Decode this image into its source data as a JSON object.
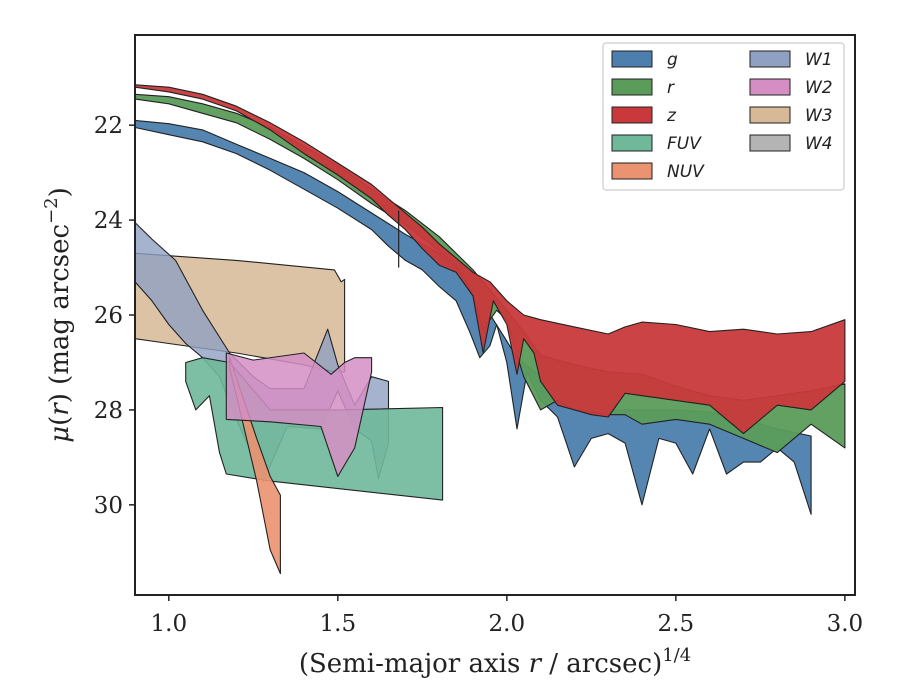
{
  "chart_data": {
    "type": "area",
    "xlabel": "(Semi-major axis r / arcsec)^1/4",
    "ylabel": "μ(r) (mag arcsec^-2)",
    "xlim": [
      0.9,
      3.03
    ],
    "ylim": [
      31.9,
      20.1
    ],
    "y_inverted": true,
    "xticks": [
      1.0,
      1.5,
      2.0,
      2.5,
      3.0
    ],
    "xtick_labels": [
      "1.0",
      "1.5",
      "2.0",
      "2.5",
      "3.0"
    ],
    "yticks": [
      22,
      24,
      26,
      28,
      30
    ],
    "ytick_labels": [
      "22",
      "24",
      "26",
      "28",
      "30"
    ],
    "legend": {
      "placement": "top-right",
      "columns": 2
    },
    "series": [
      {
        "name": "W3",
        "color": "#d7b997",
        "opacity": 0.85,
        "upper": [
          [
            0.9,
            24.7
          ],
          [
            1.0,
            24.75
          ],
          [
            1.2,
            24.85
          ],
          [
            1.49,
            25.05
          ],
          [
            1.51,
            25.3
          ],
          [
            1.52,
            25.25
          ]
        ],
        "lower": [
          [
            0.9,
            26.5
          ],
          [
            1.0,
            26.6
          ],
          [
            1.2,
            26.8
          ],
          [
            1.4,
            27.05
          ],
          [
            1.49,
            27.2
          ],
          [
            1.52,
            27.2
          ]
        ]
      },
      {
        "name": "W1",
        "color": "#8fa0c2",
        "opacity": 0.8,
        "upper": [
          [
            0.9,
            24.05
          ],
          [
            0.95,
            24.4
          ],
          [
            1.02,
            24.85
          ],
          [
            1.1,
            25.9
          ],
          [
            1.18,
            26.8
          ],
          [
            1.25,
            27.3
          ],
          [
            1.3,
            27.55
          ],
          [
            1.4,
            27.55
          ],
          [
            1.47,
            26.3
          ],
          [
            1.5,
            27.05
          ],
          [
            1.55,
            27.9
          ],
          [
            1.6,
            27.3
          ],
          [
            1.65,
            27.4
          ]
        ],
        "lower": [
          [
            0.9,
            25.3
          ],
          [
            0.95,
            25.7
          ],
          [
            1.0,
            26.2
          ],
          [
            1.05,
            26.6
          ],
          [
            1.1,
            26.9
          ],
          [
            1.15,
            27.3
          ],
          [
            1.2,
            28.2
          ],
          [
            1.25,
            29.0
          ],
          [
            1.28,
            29.5
          ],
          [
            1.35,
            28.35
          ],
          [
            1.45,
            28.4
          ],
          [
            1.5,
            27.6
          ],
          [
            1.55,
            28.4
          ],
          [
            1.6,
            28.65
          ],
          [
            1.62,
            29.45
          ],
          [
            1.65,
            28.7
          ]
        ]
      },
      {
        "name": "FUV",
        "color": "#6fb89a",
        "opacity": 0.9,
        "upper": [
          [
            1.05,
            27.0
          ],
          [
            1.1,
            26.9
          ],
          [
            1.18,
            27.0
          ],
          [
            1.3,
            28.0
          ],
          [
            1.5,
            28.0
          ],
          [
            1.81,
            27.95
          ]
        ],
        "lower": [
          [
            1.05,
            27.4
          ],
          [
            1.08,
            28.0
          ],
          [
            1.12,
            27.7
          ],
          [
            1.15,
            28.9
          ],
          [
            1.17,
            29.35
          ],
          [
            1.3,
            29.5
          ],
          [
            1.81,
            29.9
          ]
        ]
      },
      {
        "name": "NUV",
        "color": "#eb9270",
        "opacity": 0.9,
        "upper": [
          [
            1.18,
            26.9
          ],
          [
            1.26,
            28.6
          ],
          [
            1.3,
            29.4
          ],
          [
            1.33,
            29.8
          ]
        ],
        "lower": [
          [
            1.18,
            27.1
          ],
          [
            1.26,
            29.5
          ],
          [
            1.3,
            30.95
          ],
          [
            1.33,
            31.45
          ]
        ]
      },
      {
        "name": "W2",
        "color": "#d58ec4",
        "opacity": 0.85,
        "upper": [
          [
            1.17,
            26.8
          ],
          [
            1.25,
            26.95
          ],
          [
            1.4,
            26.8
          ],
          [
            1.48,
            27.25
          ],
          [
            1.52,
            27.0
          ],
          [
            1.55,
            26.9
          ],
          [
            1.6,
            26.9
          ]
        ],
        "lower": [
          [
            1.17,
            28.2
          ],
          [
            1.3,
            28.25
          ],
          [
            1.45,
            28.35
          ],
          [
            1.5,
            29.4
          ],
          [
            1.55,
            28.8
          ],
          [
            1.6,
            27.2
          ]
        ]
      },
      {
        "name": "g",
        "color": "#4c7fae",
        "opacity": 0.95,
        "upper": [
          [
            0.9,
            21.9
          ],
          [
            1.0,
            21.97
          ],
          [
            1.1,
            22.1
          ],
          [
            1.2,
            22.4
          ],
          [
            1.3,
            22.7
          ],
          [
            1.4,
            23.0
          ],
          [
            1.5,
            23.4
          ],
          [
            1.6,
            23.85
          ],
          [
            1.7,
            24.3
          ],
          [
            1.8,
            24.7
          ],
          [
            1.9,
            25.3
          ],
          [
            1.93,
            25.7
          ],
          [
            1.96,
            26.1
          ],
          [
            2.0,
            26.55
          ],
          [
            2.03,
            26.9
          ],
          [
            2.1,
            27.3
          ],
          [
            2.2,
            27.8
          ],
          [
            2.3,
            28.0
          ],
          [
            2.5,
            28.0
          ],
          [
            2.6,
            28.05
          ],
          [
            2.7,
            28.2
          ],
          [
            2.8,
            28.4
          ],
          [
            2.9,
            28.55
          ]
        ],
        "lower": [
          [
            0.9,
            22.05
          ],
          [
            1.0,
            22.2
          ],
          [
            1.1,
            22.35
          ],
          [
            1.2,
            22.6
          ],
          [
            1.3,
            22.95
          ],
          [
            1.4,
            23.35
          ],
          [
            1.5,
            23.75
          ],
          [
            1.6,
            24.2
          ],
          [
            1.65,
            24.55
          ],
          [
            1.7,
            24.85
          ],
          [
            1.75,
            25.05
          ],
          [
            1.8,
            25.4
          ],
          [
            1.85,
            25.7
          ],
          [
            1.89,
            26.35
          ],
          [
            1.92,
            26.9
          ],
          [
            1.95,
            26.65
          ],
          [
            1.97,
            26.2
          ],
          [
            2.0,
            27.0
          ],
          [
            2.03,
            28.4
          ],
          [
            2.06,
            27.2
          ],
          [
            2.1,
            27.8
          ],
          [
            2.15,
            28.15
          ],
          [
            2.2,
            29.2
          ],
          [
            2.25,
            28.6
          ],
          [
            2.3,
            28.5
          ],
          [
            2.35,
            28.7
          ],
          [
            2.4,
            30.0
          ],
          [
            2.45,
            28.6
          ],
          [
            2.5,
            28.7
          ],
          [
            2.55,
            29.35
          ],
          [
            2.6,
            28.4
          ],
          [
            2.65,
            29.35
          ],
          [
            2.7,
            29.1
          ],
          [
            2.75,
            29.1
          ],
          [
            2.8,
            28.8
          ],
          [
            2.85,
            29.1
          ],
          [
            2.9,
            30.2
          ]
        ]
      },
      {
        "name": "r",
        "color": "#5b9c5b",
        "opacity": 0.95,
        "upper": [
          [
            0.9,
            21.35
          ],
          [
            1.0,
            21.4
          ],
          [
            1.1,
            21.55
          ],
          [
            1.2,
            21.75
          ],
          [
            1.3,
            22.05
          ],
          [
            1.4,
            22.45
          ],
          [
            1.5,
            22.85
          ],
          [
            1.6,
            23.35
          ],
          [
            1.7,
            23.8
          ],
          [
            1.8,
            24.35
          ],
          [
            1.9,
            25.05
          ],
          [
            2.0,
            25.9
          ],
          [
            2.05,
            26.35
          ],
          [
            2.1,
            26.85
          ],
          [
            2.2,
            27.05
          ],
          [
            2.3,
            27.2
          ],
          [
            2.4,
            27.25
          ],
          [
            2.5,
            27.5
          ],
          [
            2.6,
            27.7
          ],
          [
            2.7,
            27.8
          ],
          [
            2.8,
            27.7
          ],
          [
            2.9,
            27.6
          ],
          [
            3.0,
            27.45
          ]
        ],
        "lower": [
          [
            0.9,
            21.45
          ],
          [
            1.0,
            21.55
          ],
          [
            1.1,
            21.75
          ],
          [
            1.2,
            21.95
          ],
          [
            1.3,
            22.3
          ],
          [
            1.4,
            22.7
          ],
          [
            1.5,
            23.15
          ],
          [
            1.6,
            23.65
          ],
          [
            1.7,
            24.1
          ],
          [
            1.8,
            24.65
          ],
          [
            1.85,
            24.95
          ],
          [
            1.9,
            25.55
          ],
          [
            1.93,
            26.3
          ],
          [
            1.97,
            25.9
          ],
          [
            2.0,
            26.1
          ],
          [
            2.02,
            26.6
          ],
          [
            2.05,
            27.3
          ],
          [
            2.1,
            28.0
          ],
          [
            2.15,
            27.8
          ],
          [
            2.2,
            28.0
          ],
          [
            2.3,
            28.1
          ],
          [
            2.35,
            28.1
          ],
          [
            2.4,
            28.3
          ],
          [
            2.5,
            28.2
          ],
          [
            2.6,
            28.3
          ],
          [
            2.7,
            28.6
          ],
          [
            2.8,
            28.9
          ],
          [
            2.9,
            28.3
          ],
          [
            3.0,
            28.8
          ]
        ]
      },
      {
        "name": "z",
        "color": "#c9393b",
        "opacity": 0.95,
        "upper": [
          [
            0.9,
            21.15
          ],
          [
            1.0,
            21.2
          ],
          [
            1.1,
            21.35
          ],
          [
            1.2,
            21.6
          ],
          [
            1.3,
            21.95
          ],
          [
            1.4,
            22.35
          ],
          [
            1.5,
            22.8
          ],
          [
            1.6,
            23.25
          ],
          [
            1.7,
            23.85
          ],
          [
            1.75,
            24.15
          ],
          [
            1.8,
            24.5
          ],
          [
            1.9,
            25.1
          ],
          [
            1.95,
            25.3
          ],
          [
            2.0,
            25.7
          ],
          [
            2.05,
            26.0
          ],
          [
            2.1,
            26.1
          ],
          [
            2.2,
            26.25
          ],
          [
            2.3,
            26.4
          ],
          [
            2.35,
            26.25
          ],
          [
            2.4,
            26.15
          ],
          [
            2.5,
            26.2
          ],
          [
            2.6,
            26.35
          ],
          [
            2.7,
            26.3
          ],
          [
            2.8,
            26.4
          ],
          [
            2.9,
            26.35
          ],
          [
            3.0,
            26.1
          ]
        ],
        "lower": [
          [
            0.9,
            21.2
          ],
          [
            1.0,
            21.3
          ],
          [
            1.1,
            21.45
          ],
          [
            1.2,
            21.7
          ],
          [
            1.3,
            22.1
          ],
          [
            1.4,
            22.6
          ],
          [
            1.5,
            23.05
          ],
          [
            1.6,
            23.55
          ],
          [
            1.65,
            23.9
          ],
          [
            1.7,
            24.2
          ],
          [
            1.75,
            24.6
          ],
          [
            1.8,
            24.95
          ],
          [
            1.85,
            25.1
          ],
          [
            1.9,
            25.6
          ],
          [
            1.93,
            26.8
          ],
          [
            1.96,
            25.7
          ],
          [
            2.0,
            26.2
          ],
          [
            2.03,
            27.25
          ],
          [
            2.05,
            26.5
          ],
          [
            2.08,
            26.8
          ],
          [
            2.1,
            27.4
          ],
          [
            2.15,
            27.9
          ],
          [
            2.2,
            28.0
          ],
          [
            2.25,
            28.1
          ],
          [
            2.3,
            28.15
          ],
          [
            2.35,
            27.65
          ],
          [
            2.4,
            27.7
          ],
          [
            2.5,
            27.8
          ],
          [
            2.6,
            27.9
          ],
          [
            2.7,
            28.5
          ],
          [
            2.8,
            27.9
          ],
          [
            2.9,
            28.0
          ],
          [
            3.0,
            27.4
          ]
        ]
      }
    ],
    "annotations": [
      {
        "type": "vertical-segment",
        "x": 1.68,
        "y_from": 23.8,
        "y_to": 25.0
      }
    ],
    "legend_order": [
      "g",
      "r",
      "z",
      "FUV",
      "NUV",
      "W1",
      "W2",
      "W3",
      "W4"
    ],
    "legend_colors": {
      "g": "#4c7fae",
      "r": "#5b9c5b",
      "z": "#c9393b",
      "FUV": "#6fb89a",
      "NUV": "#eb9270",
      "W1": "#8fa0c2",
      "W2": "#d58ec4",
      "W3": "#d7b997",
      "W4": "#b4b4b4"
    }
  }
}
